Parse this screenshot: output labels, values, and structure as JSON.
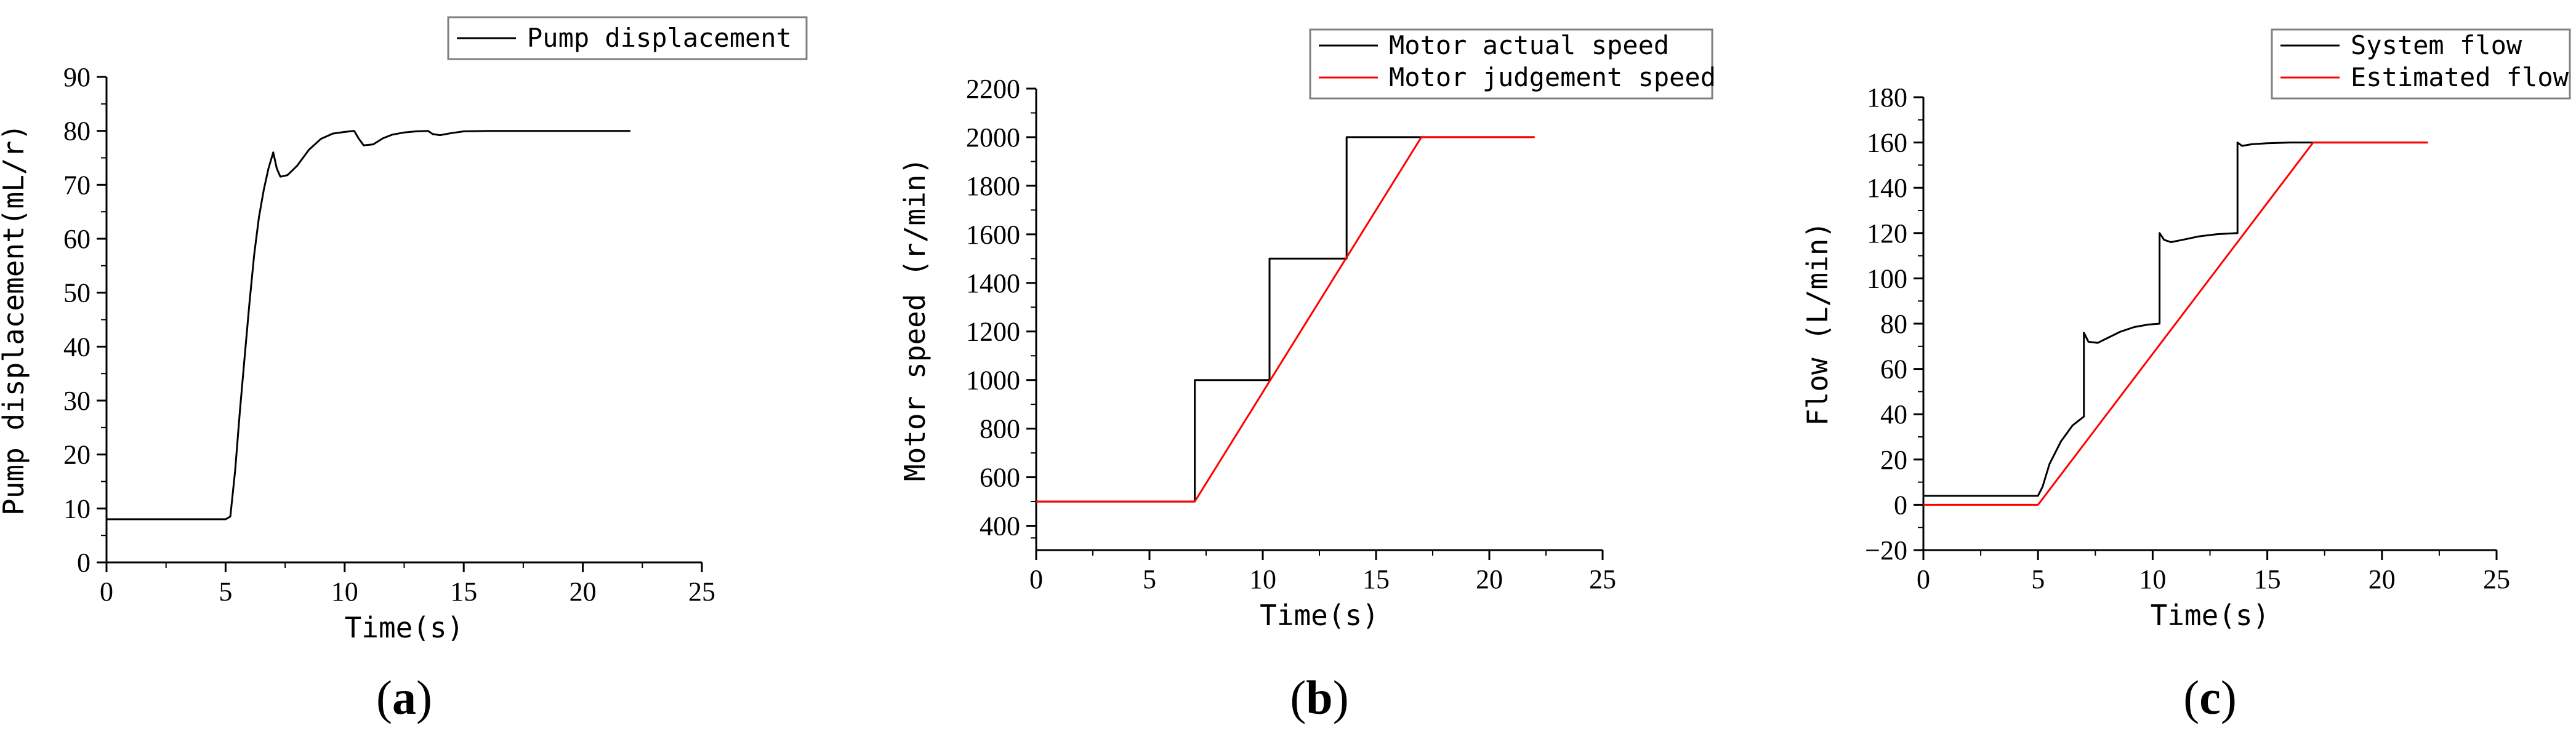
{
  "colors": {
    "axis": "#000000",
    "black_series": "#000000",
    "red_series": "#ff0000",
    "legend_border": "#808080"
  },
  "chart_data": [
    {
      "panel": "(a)",
      "panel_open": "(",
      "panel_letter": "a",
      "panel_close": ")",
      "type": "line",
      "xlabel": "Time(s)",
      "ylabel": "Pump displacement(mL/r)",
      "xlim": [
        0,
        25
      ],
      "ylim": [
        0,
        90
      ],
      "xticks": [
        0,
        5,
        10,
        15,
        20,
        25
      ],
      "xtick_labels": [
        "0",
        "5",
        "10",
        "15",
        "20",
        "25"
      ],
      "yticks": [
        0,
        10,
        20,
        30,
        40,
        50,
        60,
        70,
        80,
        90
      ],
      "ytick_labels": [
        "0",
        "10",
        "20",
        "30",
        "40",
        "50",
        "60",
        "70",
        "80",
        "90"
      ],
      "grid": false,
      "legend_position": "top-right",
      "series": [
        {
          "name": "Pump displacement",
          "color": "#000000",
          "points": [
            [
              0,
              8
            ],
            [
              5.0,
              8
            ],
            [
              5.2,
              8.5
            ],
            [
              5.4,
              17
            ],
            [
              5.6,
              28
            ],
            [
              5.8,
              38
            ],
            [
              6.0,
              48
            ],
            [
              6.2,
              57
            ],
            [
              6.4,
              64
            ],
            [
              6.6,
              69
            ],
            [
              6.8,
              73
            ],
            [
              7.0,
              76
            ],
            [
              7.15,
              73
            ],
            [
              7.3,
              71.5
            ],
            [
              7.6,
              71.8
            ],
            [
              8.0,
              73.5
            ],
            [
              8.5,
              76.5
            ],
            [
              9.0,
              78.5
            ],
            [
              9.5,
              79.5
            ],
            [
              10.0,
              79.8
            ],
            [
              10.4,
              80
            ],
            [
              10.6,
              78.5
            ],
            [
              10.8,
              77.3
            ],
            [
              11.2,
              77.5
            ],
            [
              11.6,
              78.6
            ],
            [
              12.0,
              79.3
            ],
            [
              12.5,
              79.7
            ],
            [
              13.0,
              79.9
            ],
            [
              13.5,
              80
            ],
            [
              13.7,
              79.4
            ],
            [
              14.0,
              79.2
            ],
            [
              14.5,
              79.6
            ],
            [
              15.0,
              79.9
            ],
            [
              16.0,
              80
            ],
            [
              22,
              80
            ]
          ]
        }
      ]
    },
    {
      "panel": "(b)",
      "panel_open": "(",
      "panel_letter": "b",
      "panel_close": ")",
      "type": "line",
      "xlabel": "Time(s)",
      "ylabel": "Motor speed (r/min)",
      "xlim": [
        0,
        25
      ],
      "ylim": [
        300,
        2200
      ],
      "xticks": [
        0,
        5,
        10,
        15,
        20,
        25
      ],
      "xtick_labels": [
        "0",
        "5",
        "10",
        "15",
        "20",
        "25"
      ],
      "yticks": [
        400,
        600,
        800,
        1000,
        1200,
        1400,
        1600,
        1800,
        2000,
        2200
      ],
      "ytick_labels": [
        "400",
        "600",
        "800",
        "1000",
        "1200",
        "1400",
        "1600",
        "1800",
        "2000",
        "2200"
      ],
      "grid": false,
      "legend_position": "top-right",
      "series": [
        {
          "name": "Motor actual speed",
          "color": "#000000",
          "points": [
            [
              0,
              500
            ],
            [
              7.0,
              500
            ],
            [
              7.0,
              1000
            ],
            [
              10.3,
              1000
            ],
            [
              10.3,
              1500
            ],
            [
              13.7,
              1500
            ],
            [
              13.7,
              2000
            ],
            [
              22,
              2000
            ]
          ]
        },
        {
          "name": "Motor judgement speed",
          "color": "#ff0000",
          "points": [
            [
              0,
              500
            ],
            [
              7.0,
              500
            ],
            [
              17.0,
              2000
            ],
            [
              22,
              2000
            ]
          ]
        }
      ]
    },
    {
      "panel": "(c)",
      "panel_open": "(",
      "panel_letter": "c",
      "panel_close": ")",
      "type": "line",
      "xlabel": "Time(s)",
      "ylabel": "Flow (L/min)",
      "xlim": [
        0,
        25
      ],
      "ylim": [
        -20,
        180
      ],
      "xticks": [
        0,
        5,
        10,
        15,
        20,
        25
      ],
      "xtick_labels": [
        "0",
        "5",
        "10",
        "15",
        "20",
        "25"
      ],
      "yticks": [
        -20,
        0,
        20,
        40,
        60,
        80,
        100,
        120,
        140,
        160,
        180
      ],
      "ytick_labels": [
        "−20",
        "0",
        "20",
        "40",
        "60",
        "80",
        "100",
        "120",
        "140",
        "160",
        "180"
      ],
      "grid": false,
      "legend_position": "top-right",
      "series": [
        {
          "name": "System flow",
          "color": "#000000",
          "points": [
            [
              0,
              4
            ],
            [
              5.0,
              4
            ],
            [
              5.2,
              8
            ],
            [
              5.5,
              18
            ],
            [
              6.0,
              28
            ],
            [
              6.5,
              35
            ],
            [
              7.0,
              39
            ],
            [
              7.0,
              76
            ],
            [
              7.2,
              72
            ],
            [
              7.6,
              71.5
            ],
            [
              8.0,
              73.5
            ],
            [
              8.6,
              76.5
            ],
            [
              9.2,
              78.5
            ],
            [
              9.8,
              79.6
            ],
            [
              10.3,
              80
            ],
            [
              10.3,
              120
            ],
            [
              10.5,
              117
            ],
            [
              10.8,
              116
            ],
            [
              11.3,
              117
            ],
            [
              12.0,
              118.5
            ],
            [
              12.8,
              119.5
            ],
            [
              13.7,
              120
            ],
            [
              13.7,
              160
            ],
            [
              13.9,
              158.5
            ],
            [
              14.3,
              159.2
            ],
            [
              15.0,
              159.7
            ],
            [
              16.0,
              160
            ],
            [
              22,
              160
            ]
          ]
        },
        {
          "name": "Estimated flow",
          "color": "#ff0000",
          "points": [
            [
              0,
              0
            ],
            [
              5.0,
              0
            ],
            [
              17.0,
              160
            ],
            [
              22,
              160
            ]
          ]
        }
      ]
    }
  ]
}
